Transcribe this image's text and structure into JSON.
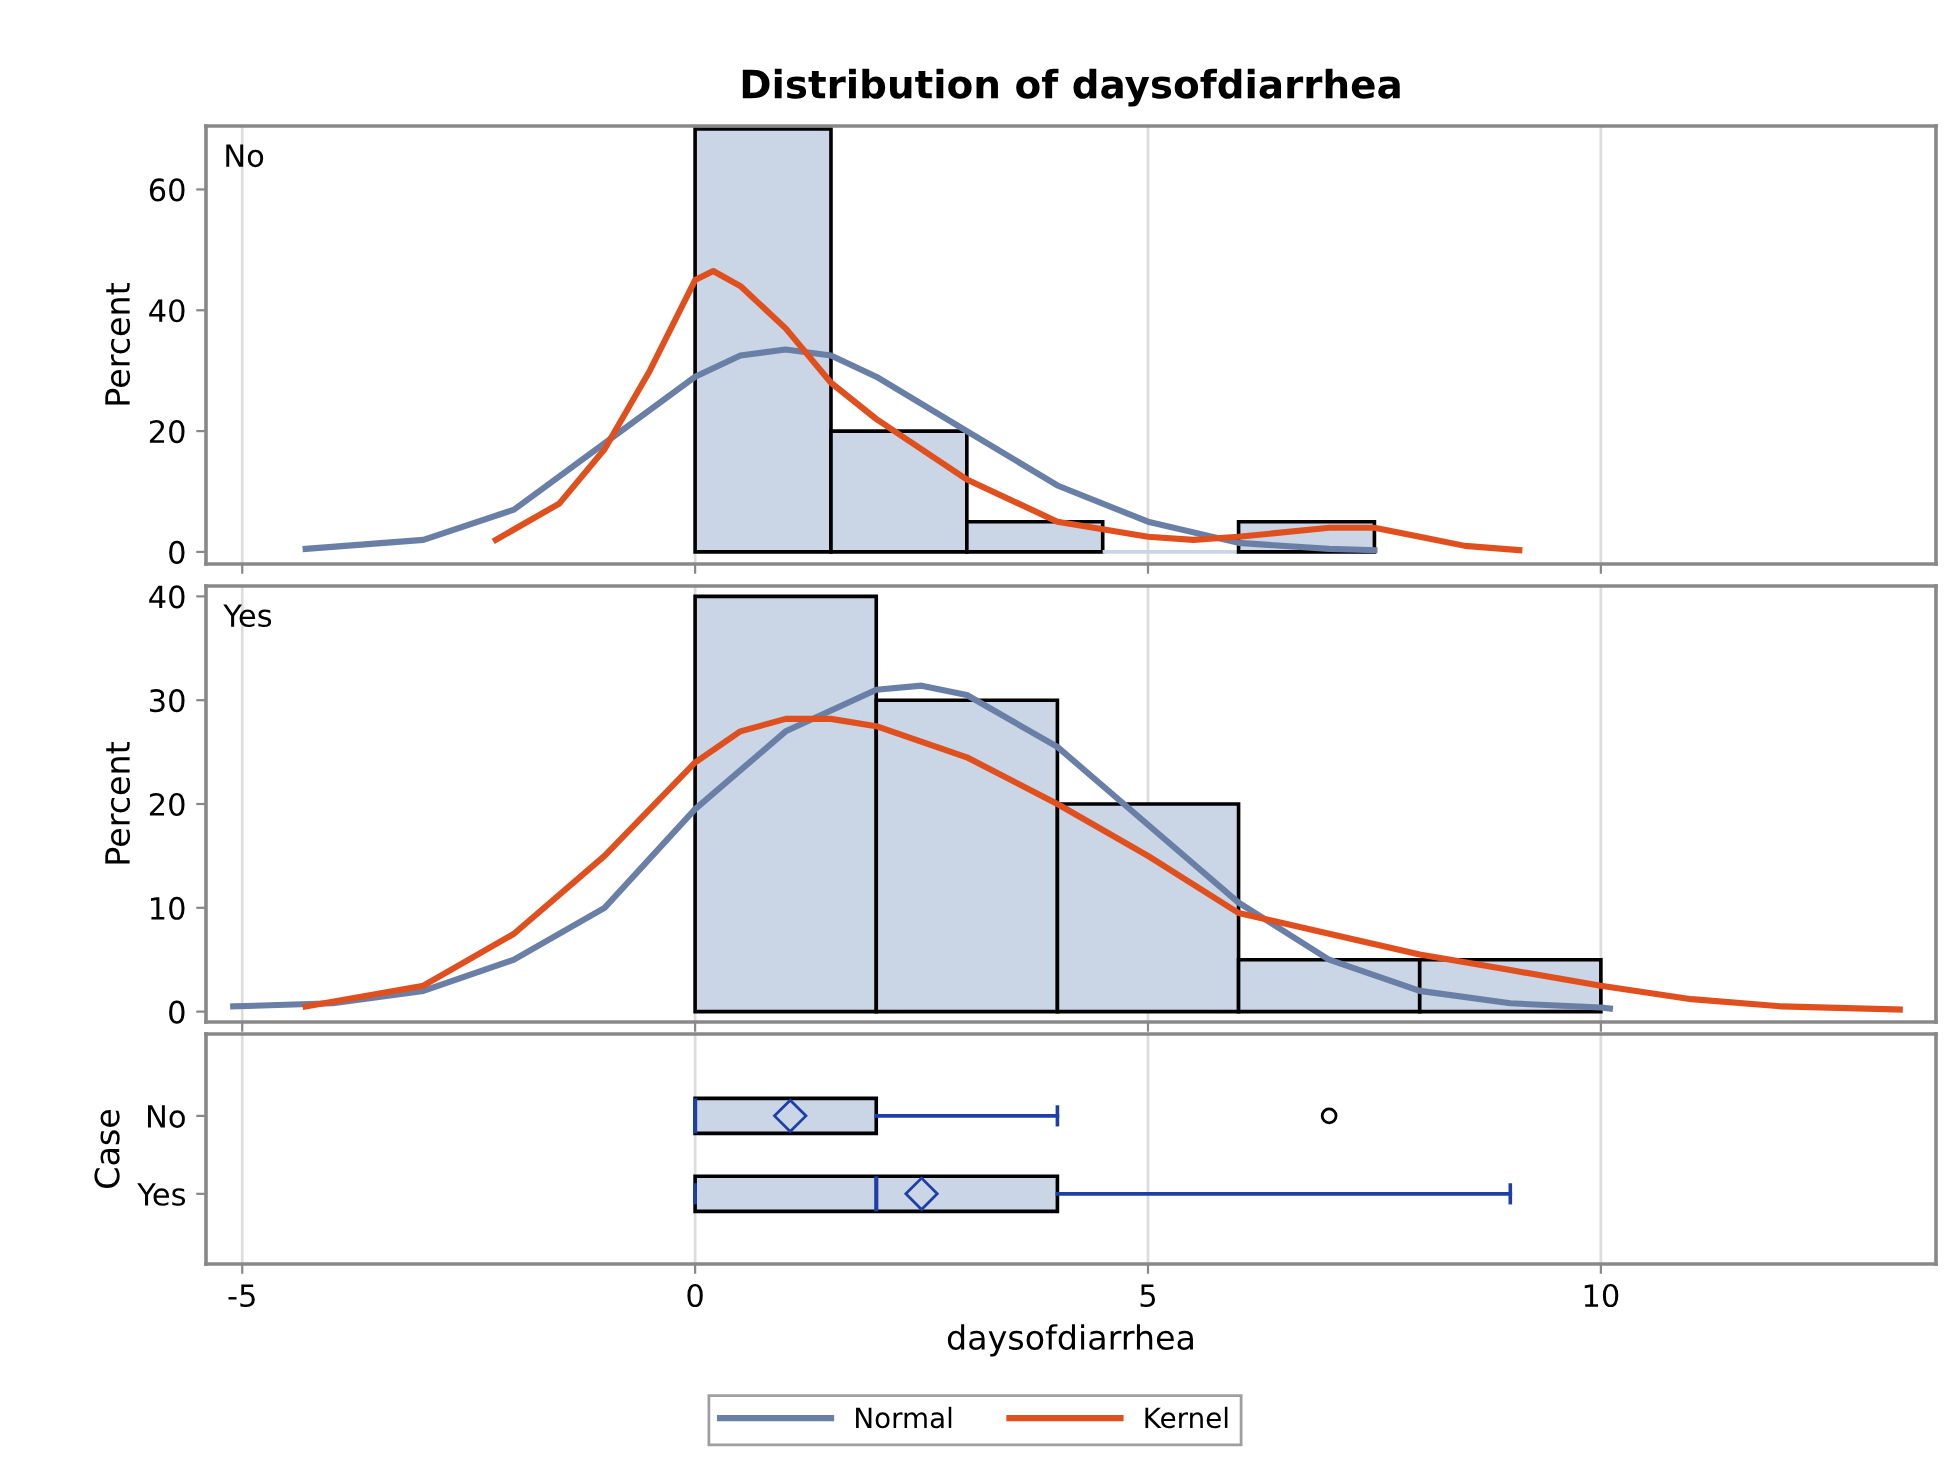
{
  "chart_data": [
    {
      "type": "histogram",
      "title": "Distribution of daysofdiarrhea",
      "ylabel": "Percent",
      "annotations": [
        "No"
      ],
      "bins": [
        0,
        1.5,
        3,
        4.5,
        6,
        7.5
      ],
      "values": [
        70,
        20,
        5,
        0,
        5
      ],
      "color": "#cad5e5",
      "xlim": [
        -5.4,
        13.7
      ],
      "xticks": [
        -5,
        0,
        5,
        10
      ],
      "ylim": [
        -2,
        70.5
      ],
      "yticks": [
        0,
        20,
        40,
        60
      ],
      "grid": "x",
      "tick_labels": "y",
      "legend": "bottom",
      "series": [
        {
          "name": "Normal",
          "type": "line",
          "color": "#6a7fa6",
          "x": [
            -4.3,
            -3,
            -2,
            -1,
            0,
            0.5,
            1,
            1.5,
            2,
            3,
            4,
            5,
            6,
            7,
            7.5
          ],
          "values": [
            0.5,
            2,
            7,
            18,
            29,
            32.5,
            33.5,
            32.5,
            29,
            20,
            11,
            5,
            1.5,
            0.5,
            0.3
          ]
        },
        {
          "name": "Kernel",
          "type": "line",
          "color": "#e0501e",
          "x": [
            -2.2,
            -1.5,
            -1,
            -0.5,
            0,
            0.2,
            0.5,
            1,
            1.5,
            2,
            3,
            4,
            5,
            5.5,
            6,
            7,
            7.5,
            8,
            8.5,
            9.1
          ],
          "values": [
            2,
            8,
            17,
            30,
            45,
            46.5,
            44,
            37,
            28,
            22,
            12,
            5,
            2.5,
            2,
            2.5,
            4,
            4,
            2.5,
            1,
            0.3
          ]
        }
      ]
    },
    {
      "type": "histogram",
      "ylabel": "Percent",
      "annotations": [
        "Yes"
      ],
      "bins": [
        0,
        2,
        4,
        6,
        8,
        10
      ],
      "values": [
        40,
        30,
        20,
        5,
        5
      ],
      "color": "#cad5e5",
      "xlim": [
        -5.4,
        13.7
      ],
      "xticks": [
        -5,
        0,
        5,
        10
      ],
      "ylim": [
        -1,
        41
      ],
      "yticks": [
        0,
        10,
        20,
        30,
        40
      ],
      "grid": "x",
      "tick_labels": "y",
      "legend": "bottom",
      "series": [
        {
          "name": "Normal",
          "type": "line",
          "color": "#6a7fa6",
          "x": [
            -5.1,
            -4,
            -3,
            -2,
            -1,
            0,
            1,
            2,
            2.5,
            3,
            4,
            5,
            6,
            7,
            8,
            9,
            10,
            10.1
          ],
          "values": [
            0.5,
            0.8,
            2,
            5,
            10,
            19.5,
            27,
            31,
            31.4,
            30.5,
            25.5,
            18,
            10.5,
            5,
            2,
            0.8,
            0.4,
            0.3
          ]
        },
        {
          "name": "Kernel",
          "type": "line",
          "color": "#e0501e",
          "x": [
            -4.3,
            -3,
            -2,
            -1,
            0,
            0.5,
            1,
            1.5,
            2,
            3,
            4,
            5,
            6,
            7,
            8,
            9,
            10,
            11,
            12,
            13.3
          ],
          "values": [
            0.5,
            2.5,
            7.5,
            15,
            24,
            27,
            28.2,
            28.2,
            27.5,
            24.5,
            20,
            15,
            9.5,
            7.5,
            5.5,
            4,
            2.5,
            1.2,
            0.5,
            0.2
          ]
        }
      ]
    },
    {
      "type": "box",
      "orientation": "horizontal",
      "xlabel": "daysofdiarrhea",
      "ylabel": "Case",
      "categories": [
        "No",
        "Yes"
      ],
      "color": "#cad5e5",
      "xlim": [
        -5.4,
        13.7
      ],
      "xticks": [
        -5,
        0,
        5,
        10
      ],
      "grid": "x",
      "boxes": [
        {
          "low": 0,
          "q1": 0,
          "median": 0,
          "q3": 2,
          "high": 4,
          "mean": 1.05,
          "outliers": [
            7
          ]
        },
        {
          "low": 0,
          "q1": 0,
          "median": 2,
          "q3": 4,
          "high": 9,
          "mean": 2.5
        }
      ]
    }
  ]
}
